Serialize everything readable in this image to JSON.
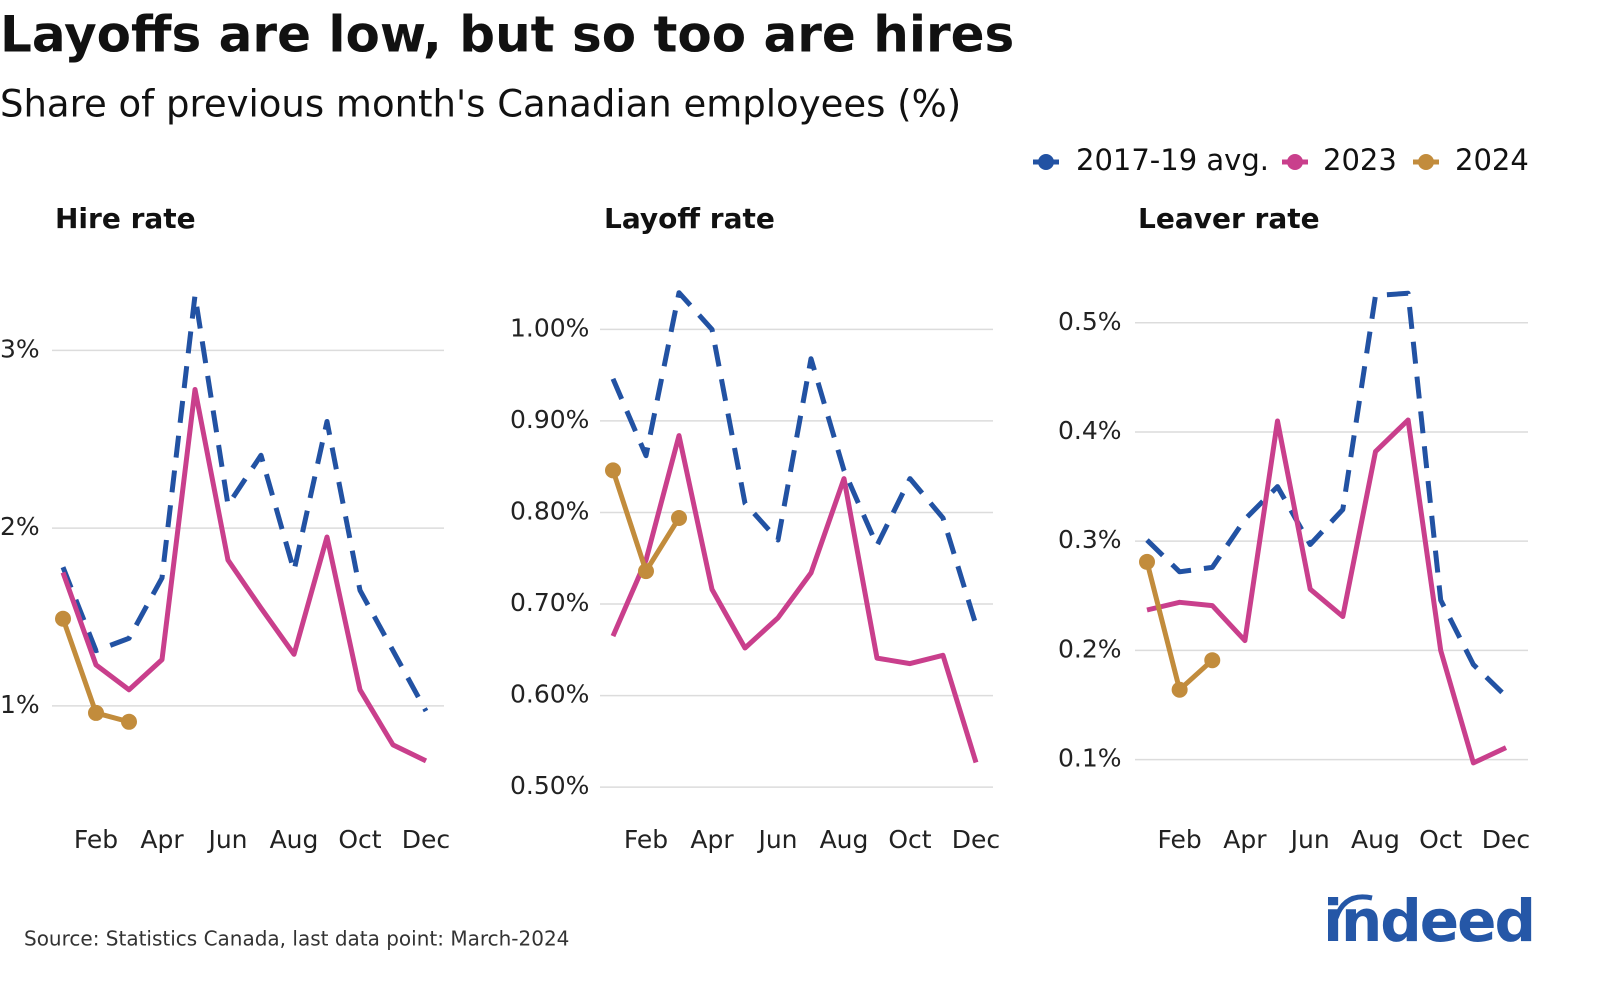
{
  "title": "Layoffs are low, but so too are hires",
  "subtitle": "Share of previous month's Canadian employees (%)",
  "source": "Source: Statistics Canada, last data point: March-2024",
  "logo": "indeed",
  "chart_data": [
    {
      "type": "line",
      "title": "Hire rate",
      "categories": [
        null,
        "Feb",
        null,
        "Apr",
        null,
        "Jun",
        null,
        "Aug",
        null,
        "Oct",
        null,
        "Dec"
      ],
      "series": [
        {
          "name": "2017-19 avg.",
          "color": "#2252a3",
          "dashed": true,
          "values": [
            1.78,
            1.31,
            1.38,
            1.72,
            3.31,
            2.13,
            2.41,
            1.76,
            2.6,
            1.65,
            1.31,
            0.97
          ]
        },
        {
          "name": "2023",
          "color": "#c93f8c",
          "values": [
            1.75,
            1.23,
            1.09,
            1.26,
            2.78,
            1.82,
            1.55,
            1.29,
            1.95,
            1.09,
            0.78,
            0.69
          ]
        },
        {
          "name": "2024",
          "color": "#c28c3c",
          "markers": true,
          "values": [
            1.49,
            0.96,
            0.91,
            null,
            null,
            null,
            null,
            null,
            null,
            null,
            null,
            null
          ]
        }
      ],
      "ylim": [
        0.47,
        3.34
      ],
      "yticks": [
        {
          "value": 1,
          "label": "1%"
        },
        {
          "value": 2,
          "label": "2%"
        },
        {
          "value": 3,
          "label": "3%"
        }
      ],
      "grid": true
    },
    {
      "type": "line",
      "title": "Layoff rate",
      "categories": [
        null,
        "Feb",
        null,
        "Apr",
        null,
        "Jun",
        null,
        "Aug",
        null,
        "Oct",
        null,
        "Dec"
      ],
      "series": [
        {
          "name": "2017-19 avg.",
          "color": "#2252a3",
          "dashed": true,
          "values": [
            0.946,
            0.862,
            1.04,
            1.0,
            0.81,
            0.77,
            0.968,
            0.846,
            0.764,
            0.837,
            0.794,
            0.677
          ]
        },
        {
          "name": "2023",
          "color": "#c93f8c",
          "values": [
            0.665,
            0.748,
            0.884,
            0.716,
            0.652,
            0.685,
            0.734,
            0.837,
            0.641,
            0.635,
            0.644,
            0.527
          ]
        },
        {
          "name": "2024",
          "color": "#c28c3c",
          "markers": true,
          "values": [
            0.846,
            0.736,
            0.794,
            null,
            null,
            null,
            null,
            null,
            null,
            null,
            null,
            null
          ]
        }
      ],
      "ylim": [
        0.486,
        1.043
      ],
      "yticks": [
        {
          "value": 0.5,
          "label": "0.50%"
        },
        {
          "value": 0.6,
          "label": "0.60%"
        },
        {
          "value": 0.7,
          "label": "0.70%"
        },
        {
          "value": 0.8,
          "label": "0.80%"
        },
        {
          "value": 0.9,
          "label": "0.90%"
        },
        {
          "value": 1.0,
          "label": "1.00%"
        }
      ],
      "grid": true
    },
    {
      "type": "line",
      "title": "Leaver rate",
      "categories": [
        null,
        "Feb",
        null,
        "Apr",
        null,
        "Jun",
        null,
        "Aug",
        null,
        "Oct",
        null,
        "Dec"
      ],
      "series": [
        {
          "name": "2017-19 avg.",
          "color": "#2252a3",
          "dashed": true,
          "values": [
            0.301,
            0.272,
            0.276,
            0.32,
            0.35,
            0.297,
            0.329,
            0.525,
            0.527,
            0.246,
            0.187,
            0.158
          ]
        },
        {
          "name": "2023",
          "color": "#c93f8c",
          "values": [
            0.237,
            0.244,
            0.241,
            0.209,
            0.41,
            0.256,
            0.231,
            0.382,
            0.411,
            0.2,
            0.097,
            0.111
          ]
        },
        {
          "name": "2024",
          "color": "#c28c3c",
          "markers": true,
          "values": [
            0.281,
            0.164,
            0.191,
            null,
            null,
            null,
            null,
            null,
            null,
            null,
            null,
            null
          ]
        }
      ],
      "ylim": [
        0.063,
        0.53
      ],
      "yticks": [
        {
          "value": 0.1,
          "label": "0.1%"
        },
        {
          "value": 0.2,
          "label": "0.2%"
        },
        {
          "value": 0.3,
          "label": "0.3%"
        },
        {
          "value": 0.4,
          "label": "0.4%"
        },
        {
          "value": 0.5,
          "label": "0.5%"
        }
      ],
      "grid": true
    }
  ]
}
